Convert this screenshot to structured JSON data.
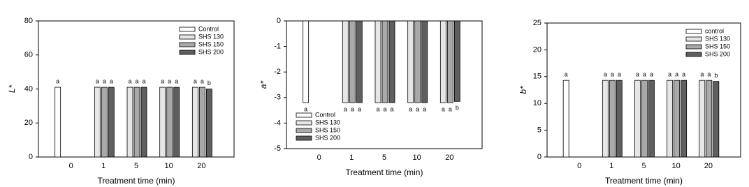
{
  "chart_data": [
    {
      "type": "bar",
      "ylabel": "L*",
      "xlabel": "Treatment time (min)",
      "categories": [
        "0",
        "1",
        "5",
        "10",
        "20"
      ],
      "ylim": [
        0,
        80
      ],
      "yticks": [
        0,
        20,
        40,
        60,
        80
      ],
      "legend": "upper right",
      "series": [
        {
          "name": "Control",
          "color": "#ffffff",
          "values": [
            41,
            null,
            null,
            null,
            null
          ],
          "letters": [
            "a",
            null,
            null,
            null,
            null
          ]
        },
        {
          "name": "SHS 130",
          "color": "#e6e6e6",
          "values": [
            null,
            41,
            41,
            41,
            41
          ],
          "letters": [
            null,
            "a",
            "a",
            "a",
            "a"
          ]
        },
        {
          "name": "SHS 150",
          "color": "#a9a9a9",
          "values": [
            null,
            41,
            41,
            41,
            41
          ],
          "letters": [
            null,
            "a",
            "a",
            "a",
            "a"
          ]
        },
        {
          "name": "SHS 200",
          "color": "#5f5f5f",
          "values": [
            null,
            41,
            41,
            41,
            40
          ],
          "letters": [
            null,
            "a",
            "a",
            "a",
            "b"
          ]
        }
      ]
    },
    {
      "type": "bar",
      "ylabel": "a*",
      "xlabel": "Treatment time (min)",
      "categories": [
        "0",
        "1",
        "5",
        "10",
        "20"
      ],
      "ylim": [
        -5,
        0
      ],
      "yticks": [
        0,
        -1,
        -2,
        -3,
        -4,
        -5
      ],
      "legend": "lower left",
      "series": [
        {
          "name": "Control",
          "color": "#ffffff",
          "values": [
            -3.2,
            null,
            null,
            null,
            null
          ],
          "letters": [
            "a",
            null,
            null,
            null,
            null
          ]
        },
        {
          "name": "SHS 130",
          "color": "#e6e6e6",
          "values": [
            null,
            -3.2,
            -3.2,
            -3.2,
            -3.2
          ],
          "letters": [
            null,
            "a",
            "a",
            "a",
            "a"
          ]
        },
        {
          "name": "SHS 150",
          "color": "#a9a9a9",
          "values": [
            null,
            -3.2,
            -3.2,
            -3.2,
            -3.2
          ],
          "letters": [
            null,
            "a",
            "a",
            "a",
            "a"
          ]
        },
        {
          "name": "SHS 200",
          "color": "#5f5f5f",
          "values": [
            null,
            -3.2,
            -3.2,
            -3.2,
            -3.15
          ],
          "letters": [
            null,
            "a",
            "a",
            "a",
            "b"
          ]
        }
      ]
    },
    {
      "type": "bar",
      "ylabel": "b*",
      "xlabel": "Treatment time (min)",
      "categories": [
        "0",
        "1",
        "5",
        "10",
        "20"
      ],
      "ylim": [
        0,
        25
      ],
      "yticks": [
        0,
        5,
        10,
        15,
        20,
        25
      ],
      "legend": "upper right",
      "series": [
        {
          "name": "control",
          "color": "#ffffff",
          "values": [
            14.3,
            null,
            null,
            null,
            null
          ],
          "letters": [
            "a",
            null,
            null,
            null,
            null
          ]
        },
        {
          "name": "SHS 130",
          "color": "#e6e6e6",
          "values": [
            null,
            14.3,
            14.3,
            14.3,
            14.3
          ],
          "letters": [
            null,
            "a",
            "a",
            "a",
            "a"
          ]
        },
        {
          "name": "SHS 150",
          "color": "#a9a9a9",
          "values": [
            null,
            14.3,
            14.3,
            14.3,
            14.3
          ],
          "letters": [
            null,
            "a",
            "a",
            "a",
            "a"
          ]
        },
        {
          "name": "SHS 200",
          "color": "#5f5f5f",
          "values": [
            null,
            14.3,
            14.3,
            14.3,
            14.1
          ],
          "letters": [
            null,
            "a",
            "a",
            "a",
            "b"
          ]
        }
      ]
    }
  ]
}
